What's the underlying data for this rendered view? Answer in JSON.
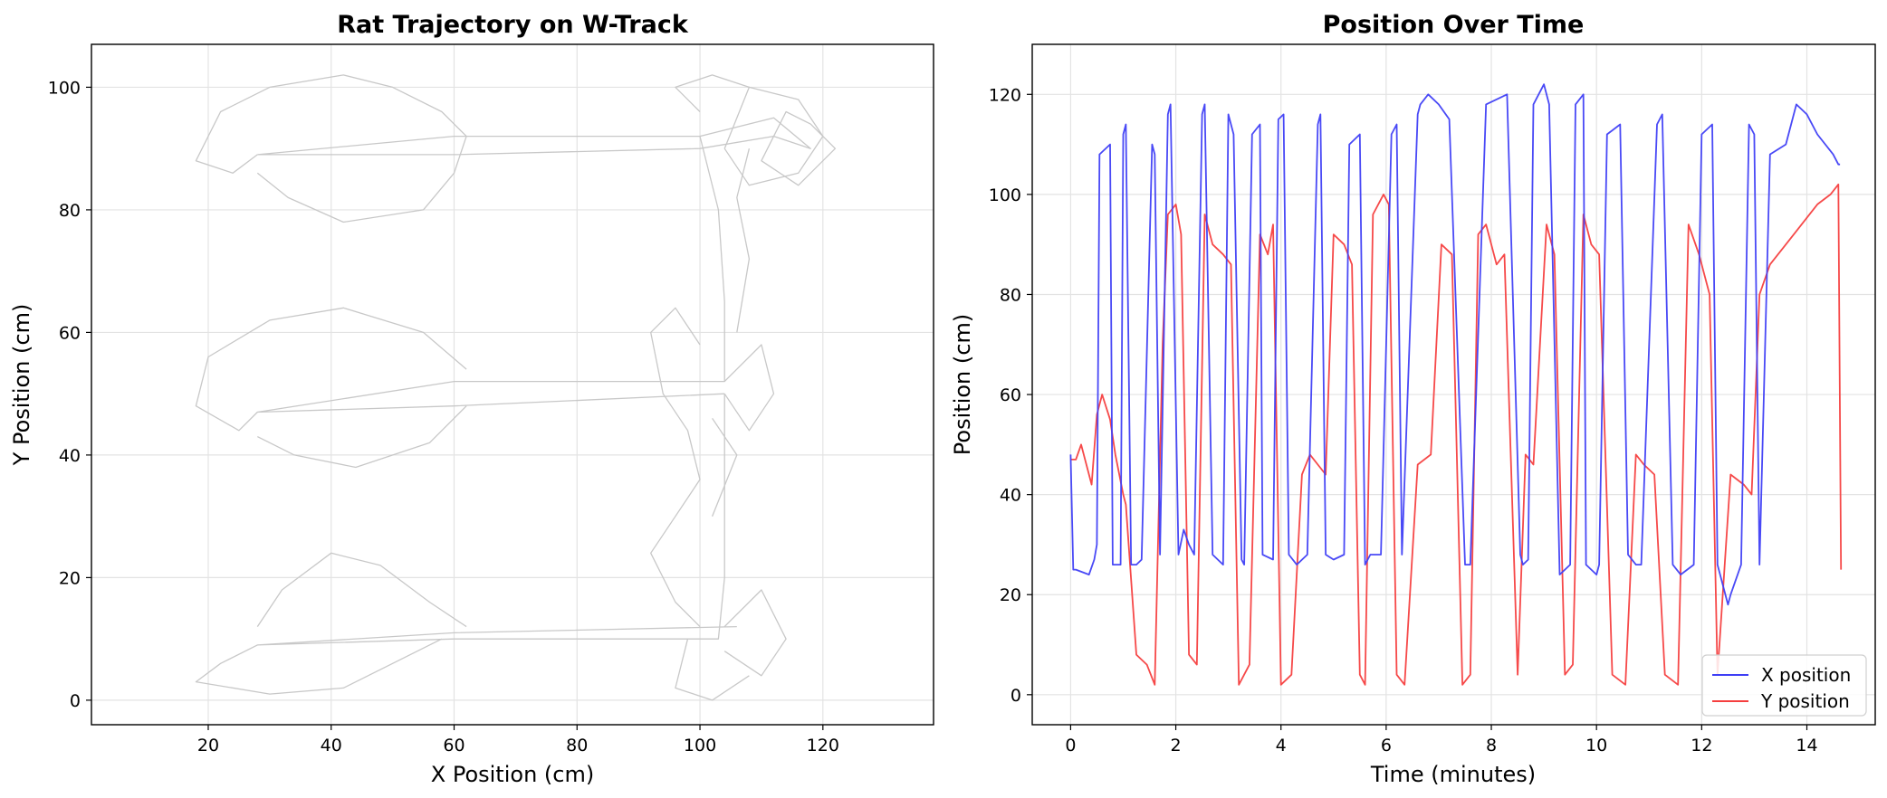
{
  "chart_data": [
    {
      "type": "line",
      "title": "Rat Trajectory on W-Track",
      "xlabel": "X Position (cm)",
      "ylabel": "Y Position (cm)",
      "xlim": [
        1,
        138
      ],
      "ylim": [
        -4,
        107
      ],
      "xticks": [
        20,
        40,
        60,
        80,
        100,
        120
      ],
      "yticks": [
        0,
        20,
        40,
        60,
        80,
        100
      ],
      "grid": true,
      "series": [
        {
          "color": "#c8c8c8",
          "segments": [
            [
              [
                28,
                89
              ],
              [
                60,
                89
              ],
              [
                100,
                90
              ],
              [
                112,
                92
              ],
              [
                118,
                90
              ],
              [
                112,
                95
              ],
              [
                100,
                92
              ],
              [
                60,
                92
              ],
              [
                28,
                89
              ]
            ],
            [
              [
                28,
                89
              ],
              [
                24,
                86
              ],
              [
                18,
                88
              ],
              [
                22,
                96
              ],
              [
                30,
                100
              ],
              [
                42,
                102
              ],
              [
                50,
                100
              ],
              [
                58,
                96
              ],
              [
                62,
                92
              ]
            ],
            [
              [
                28,
                86
              ],
              [
                33,
                82
              ],
              [
                42,
                78
              ],
              [
                55,
                80
              ],
              [
                60,
                86
              ],
              [
                62,
                92
              ]
            ],
            [
              [
                100,
                92
              ],
              [
                103,
                80
              ],
              [
                104,
                65
              ],
              [
                104,
                52
              ],
              [
                100,
                52
              ],
              [
                60,
                52
              ],
              [
                28,
                47
              ],
              [
                60,
                48
              ],
              [
                104,
                50
              ]
            ],
            [
              [
                28,
                47
              ],
              [
                25,
                44
              ],
              [
                18,
                48
              ],
              [
                20,
                56
              ],
              [
                30,
                62
              ],
              [
                42,
                64
              ],
              [
                55,
                60
              ],
              [
                62,
                54
              ]
            ],
            [
              [
                28,
                43
              ],
              [
                34,
                40
              ],
              [
                44,
                38
              ],
              [
                56,
                42
              ],
              [
                62,
                48
              ]
            ],
            [
              [
                104,
                50
              ],
              [
                104,
                35
              ],
              [
                104,
                20
              ],
              [
                103,
                10
              ],
              [
                100,
                10
              ],
              [
                60,
                10
              ],
              [
                28,
                9
              ],
              [
                60,
                11
              ],
              [
                106,
                12
              ]
            ],
            [
              [
                28,
                9
              ],
              [
                22,
                6
              ],
              [
                18,
                3
              ],
              [
                30,
                1
              ],
              [
                42,
                2
              ],
              [
                50,
                6
              ],
              [
                58,
                10
              ]
            ],
            [
              [
                28,
                12
              ],
              [
                32,
                18
              ],
              [
                40,
                24
              ],
              [
                48,
                22
              ],
              [
                56,
                16
              ],
              [
                62,
                12
              ]
            ],
            [
              [
                104,
                90
              ],
              [
                108,
                100
              ],
              [
                116,
                98
              ],
              [
                120,
                92
              ],
              [
                116,
                86
              ],
              [
                108,
                84
              ],
              [
                104,
                90
              ]
            ],
            [
              [
                104,
                52
              ],
              [
                110,
                58
              ],
              [
                112,
                50
              ],
              [
                108,
                44
              ],
              [
                104,
                50
              ]
            ],
            [
              [
                104,
                12
              ],
              [
                110,
                18
              ],
              [
                114,
                10
              ],
              [
                110,
                4
              ],
              [
                104,
                8
              ]
            ],
            [
              [
                98,
                10
              ],
              [
                96,
                2
              ],
              [
                102,
                0
              ],
              [
                108,
                4
              ]
            ],
            [
              [
                100,
                58
              ],
              [
                96,
                64
              ],
              [
                92,
                60
              ],
              [
                94,
                50
              ],
              [
                98,
                44
              ],
              [
                100,
                36
              ],
              [
                96,
                30
              ],
              [
                92,
                24
              ],
              [
                96,
                16
              ],
              [
                100,
                12
              ]
            ],
            [
              [
                100,
                96
              ],
              [
                96,
                100
              ],
              [
                102,
                102
              ],
              [
                108,
                100
              ]
            ],
            [
              [
                106,
                60
              ],
              [
                108,
                72
              ],
              [
                106,
                82
              ],
              [
                108,
                90
              ]
            ],
            [
              [
                102,
                30
              ],
              [
                106,
                40
              ],
              [
                102,
                46
              ]
            ],
            [
              [
                118,
                94
              ],
              [
                122,
                90
              ],
              [
                116,
                84
              ],
              [
                110,
                88
              ],
              [
                114,
                96
              ],
              [
                118,
                94
              ]
            ]
          ]
        }
      ]
    },
    {
      "type": "line",
      "title": "Position Over Time",
      "xlabel": "Time (minutes)",
      "ylabel": "Position (cm)",
      "xlim": [
        -0.73,
        15.3
      ],
      "ylim": [
        -6,
        130
      ],
      "xticks": [
        0,
        2,
        4,
        6,
        8,
        10,
        12,
        14
      ],
      "yticks": [
        0,
        20,
        40,
        60,
        80,
        100,
        120
      ],
      "grid": true,
      "legend_position": "lower-right",
      "series": [
        {
          "name": "X position",
          "color": "#3f3ff5",
          "x": [
            0,
            0.05,
            0.1,
            0.35,
            0.45,
            0.5,
            0.55,
            0.75,
            0.8,
            0.95,
            1.0,
            1.05,
            1.15,
            1.25,
            1.35,
            1.55,
            1.6,
            1.7,
            1.85,
            1.9,
            2.05,
            2.15,
            2.25,
            2.35,
            2.5,
            2.55,
            2.7,
            2.9,
            3.0,
            3.1,
            3.25,
            3.3,
            3.45,
            3.6,
            3.65,
            3.85,
            3.95,
            4.05,
            4.15,
            4.3,
            4.5,
            4.7,
            4.75,
            4.85,
            5.0,
            5.2,
            5.3,
            5.5,
            5.6,
            5.7,
            5.9,
            6.1,
            6.2,
            6.3,
            6.6,
            6.65,
            6.8,
            7.0,
            7.2,
            7.5,
            7.6,
            7.9,
            8.3,
            8.55,
            8.6,
            8.7,
            8.8,
            9.0,
            9.1,
            9.3,
            9.5,
            9.6,
            9.75,
            9.8,
            10.0,
            10.05,
            10.2,
            10.45,
            10.6,
            10.75,
            10.85,
            11.15,
            11.25,
            11.45,
            11.6,
            11.85,
            12.0,
            12.2,
            12.3,
            12.5,
            12.55,
            12.75,
            12.9,
            13.0,
            13.1,
            13.3,
            13.6,
            13.8,
            14.0,
            14.2,
            14.5,
            14.6,
            14.63
          ],
          "values": [
            48,
            25,
            25,
            24,
            27,
            30,
            108,
            110,
            26,
            26,
            112,
            114,
            26,
            26,
            27,
            110,
            108,
            28,
            116,
            118,
            28,
            33,
            30,
            28,
            116,
            118,
            28,
            26,
            116,
            112,
            27,
            26,
            112,
            114,
            28,
            27,
            115,
            116,
            28,
            26,
            28,
            114,
            116,
            28,
            27,
            28,
            110,
            112,
            26,
            28,
            28,
            112,
            114,
            28,
            116,
            118,
            120,
            118,
            115,
            26,
            26,
            118,
            120,
            28,
            26,
            27,
            118,
            122,
            118,
            24,
            26,
            118,
            120,
            26,
            24,
            26,
            112,
            114,
            28,
            26,
            26,
            114,
            116,
            26,
            24,
            26,
            112,
            114,
            26,
            18,
            20,
            26,
            114,
            112,
            26,
            108,
            110,
            118,
            116,
            112,
            108,
            106,
            106
          ]
        },
        {
          "name": "Y position",
          "color": "#f53f3f",
          "x": [
            0,
            0.1,
            0.2,
            0.3,
            0.4,
            0.5,
            0.6,
            0.75,
            0.85,
            1.0,
            1.05,
            1.25,
            1.45,
            1.6,
            1.75,
            1.85,
            2.0,
            2.1,
            2.25,
            2.4,
            2.55,
            2.7,
            2.9,
            3.05,
            3.2,
            3.4,
            3.6,
            3.75,
            3.85,
            4.0,
            4.2,
            4.4,
            4.55,
            4.7,
            4.85,
            5.0,
            5.2,
            5.35,
            5.5,
            5.6,
            5.75,
            5.95,
            6.05,
            6.2,
            6.35,
            6.6,
            6.85,
            7.05,
            7.25,
            7.45,
            7.6,
            7.75,
            7.9,
            8.1,
            8.25,
            8.5,
            8.65,
            8.8,
            9.05,
            9.2,
            9.4,
            9.55,
            9.75,
            9.9,
            10.05,
            10.3,
            10.55,
            10.75,
            10.9,
            11.1,
            11.3,
            11.55,
            11.75,
            11.95,
            12.15,
            12.3,
            12.55,
            12.8,
            12.95,
            13.1,
            13.3,
            13.6,
            13.9,
            14.2,
            14.45,
            14.6,
            14.65
          ],
          "values": [
            47,
            47,
            50,
            46,
            42,
            56,
            60,
            55,
            48,
            40,
            38,
            8,
            6,
            2,
            70,
            96,
            98,
            92,
            8,
            6,
            96,
            90,
            88,
            86,
            2,
            6,
            92,
            88,
            94,
            2,
            4,
            44,
            48,
            46,
            44,
            92,
            90,
            86,
            4,
            2,
            96,
            100,
            98,
            4,
            2,
            46,
            48,
            90,
            88,
            2,
            4,
            92,
            94,
            86,
            88,
            4,
            48,
            46,
            94,
            88,
            4,
            6,
            96,
            90,
            88,
            4,
            2,
            48,
            46,
            44,
            4,
            2,
            94,
            88,
            80,
            4,
            44,
            42,
            40,
            80,
            86,
            90,
            94,
            98,
            100,
            102,
            25
          ]
        }
      ]
    }
  ]
}
